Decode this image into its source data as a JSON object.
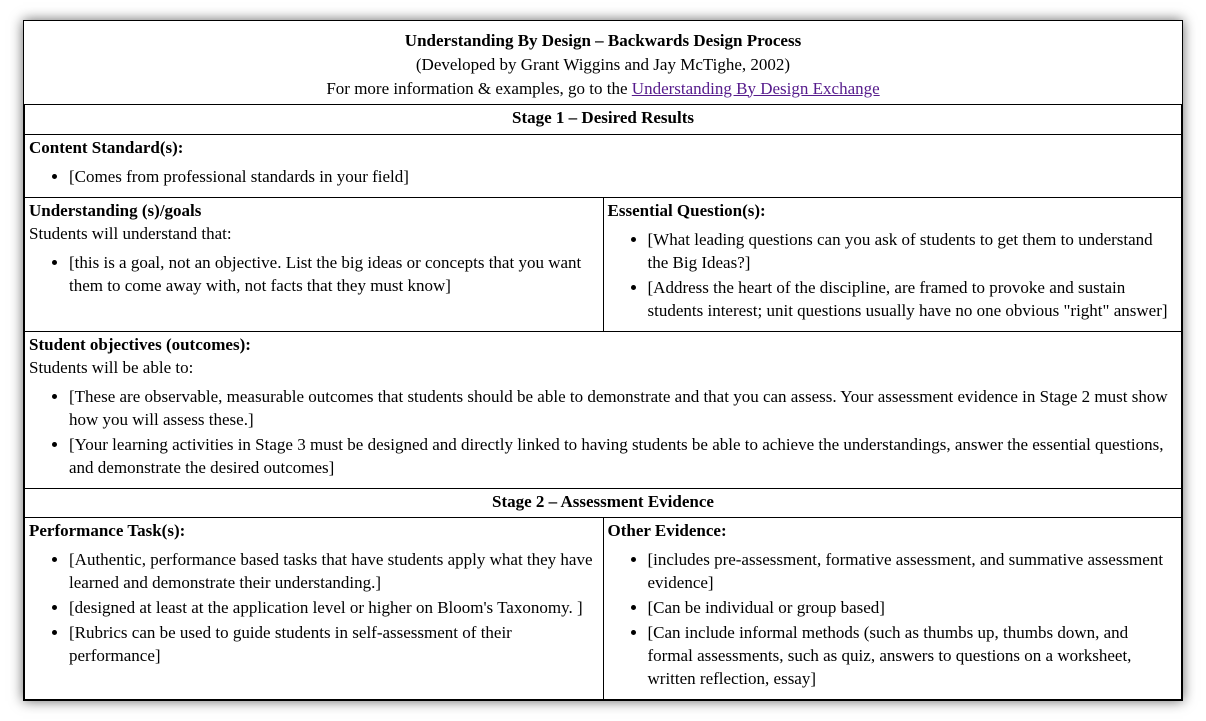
{
  "header": {
    "title": "Understanding By Design – Backwards Design Process",
    "subtitle": "(Developed by Grant Wiggins and Jay McTighe, 2002)",
    "more_info_prefix": "For more information & examples, go to the ",
    "link_text": "Understanding By Design Exchange"
  },
  "stage1": {
    "title": "Stage 1 – Desired Results",
    "content_standards": {
      "heading": "Content Standard(s):",
      "bullet1": "[Comes from professional standards in your field]"
    },
    "understanding": {
      "heading": "Understanding (s)/goals",
      "intro": "Students will understand that:",
      "bullet1": "[this is a goal, not an objective.  List the big ideas or concepts that you want them to come away with, not facts that they must know]"
    },
    "essential_questions": {
      "heading": "Essential Question(s):",
      "bullet1": "[What leading questions can you ask of students to get them to understand the Big Ideas?]",
      "bullet2": "[Address the heart of the discipline, are framed to provoke and sustain students interest; unit questions usually have no one obvious \"right\" answer]"
    },
    "objectives": {
      "heading": "Student objectives (outcomes):",
      "intro": "Students will be able to:",
      "bullet1": "[These are observable, measurable outcomes that students should be able to demonstrate and that you can assess. Your assessment evidence in Stage 2 must show how you will assess these.]",
      "bullet2": "[Your learning activities in Stage 3 must be designed and directly linked to having students be able to achieve the understandings, answer the essential questions, and demonstrate the desired outcomes]"
    }
  },
  "stage2": {
    "title": "Stage 2 – Assessment Evidence",
    "performance_tasks": {
      "heading": "Performance Task(s):",
      "bullet1": "[Authentic, performance based tasks that have students apply what they have learned and demonstrate their understanding.]",
      "bullet2": "[designed at least at the application level or higher on Bloom's Taxonomy. ]",
      "bullet3": "[Rubrics can be used to guide students in self-assessment of their performance]"
    },
    "other_evidence": {
      "heading": "Other Evidence:",
      "bullet1": "[includes pre-assessment, formative assessment, and summative assessment evidence]",
      "bullet2": "[Can be individual or group based]",
      "bullet3": "[Can include informal methods (such as thumbs up, thumbs down, and formal assessments, such as quiz, answers to questions on a worksheet, written reflection, essay]"
    }
  }
}
